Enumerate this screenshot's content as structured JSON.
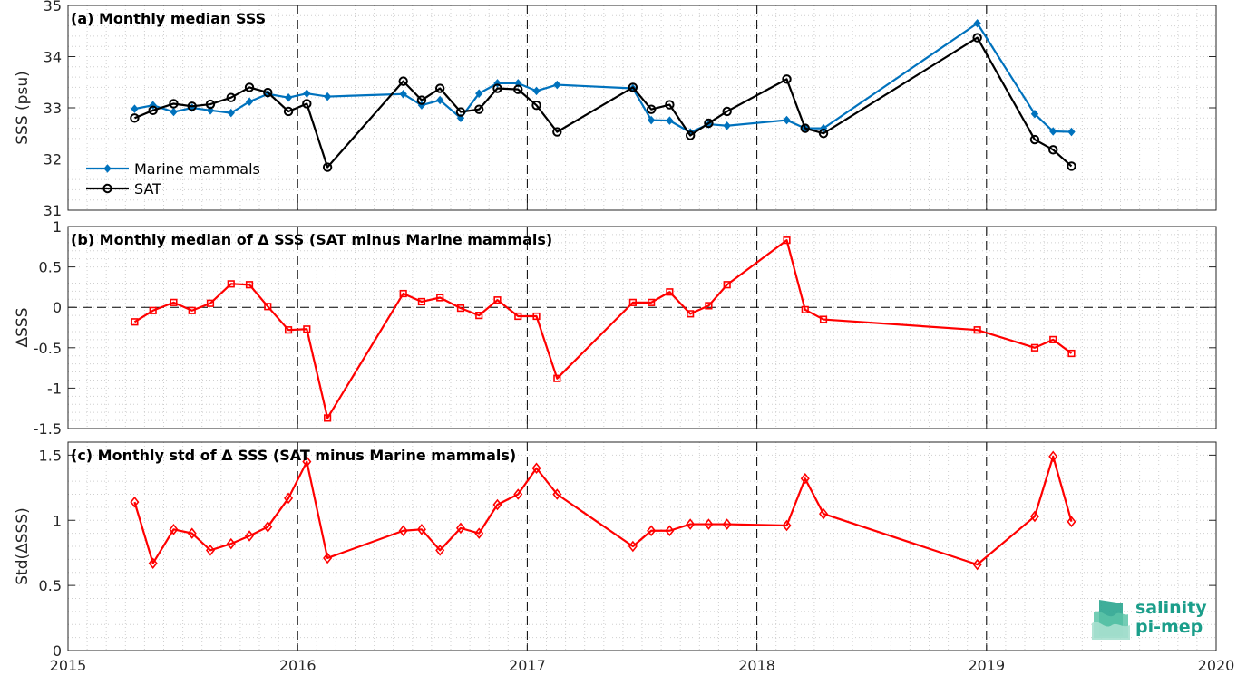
{
  "chart_data": [
    {
      "panel": "a",
      "type": "line",
      "title": "(a) Monthly median SSS",
      "ylabel": "SSS (psu)",
      "xlim": [
        2015,
        2020
      ],
      "ylim": [
        31,
        35
      ],
      "yticks": [
        31,
        32,
        33,
        34,
        35
      ],
      "yticklabels": [
        "31",
        "32",
        "33",
        "34",
        "35"
      ],
      "grid": "dotted minor",
      "legend": "bottom-left",
      "series": [
        {
          "name": "Marine mammals",
          "color": "#0072bd",
          "marker": "diamond",
          "x": [
            2015.29,
            2015.37,
            2015.46,
            2015.54,
            2015.62,
            2015.71,
            2015.79,
            2015.87,
            2015.96,
            2016.04,
            2016.13,
            2016.46,
            2016.54,
            2016.62,
            2016.71,
            2016.79,
            2016.87,
            2016.96,
            2017.04,
            2017.13,
            2017.46,
            2017.54,
            2017.62,
            2017.71,
            2017.79,
            2017.87,
            2018.13,
            2018.21,
            2018.29,
            2018.96,
            2019.21,
            2019.29,
            2019.37
          ],
          "y": [
            32.98,
            33.05,
            32.92,
            33.0,
            32.95,
            32.9,
            33.12,
            33.27,
            33.2,
            33.28,
            33.22,
            33.27,
            33.05,
            33.15,
            32.8,
            33.28,
            33.48,
            33.48,
            33.33,
            33.45,
            33.38,
            32.76,
            32.75,
            32.52,
            32.68,
            32.65,
            32.76,
            32.6,
            32.6,
            34.65,
            32.88,
            32.54,
            32.53
          ]
        },
        {
          "name": "SAT",
          "color": "#000000",
          "marker": "circle",
          "x": [
            2015.29,
            2015.37,
            2015.46,
            2015.54,
            2015.62,
            2015.71,
            2015.79,
            2015.87,
            2015.96,
            2016.04,
            2016.13,
            2016.46,
            2016.54,
            2016.62,
            2016.71,
            2016.79,
            2016.87,
            2016.96,
            2017.04,
            2017.13,
            2017.46,
            2017.54,
            2017.62,
            2017.71,
            2017.79,
            2017.87,
            2018.13,
            2018.21,
            2018.29,
            2018.96,
            2019.21,
            2019.29,
            2019.37
          ],
          "y": [
            32.8,
            32.95,
            33.08,
            33.03,
            33.07,
            33.2,
            33.4,
            33.3,
            32.93,
            33.08,
            31.84,
            33.52,
            33.15,
            33.38,
            32.92,
            32.97,
            33.38,
            33.36,
            33.05,
            32.53,
            33.4,
            32.97,
            33.06,
            32.46,
            32.7,
            32.93,
            33.56,
            32.6,
            32.5,
            34.37,
            32.38,
            32.18,
            31.86
          ]
        }
      ]
    },
    {
      "panel": "b",
      "type": "line",
      "title": "(b) Monthly median of Δ SSS (SAT minus Marine mammals)",
      "ylabel": "ΔSSS",
      "xlim": [
        2015,
        2020
      ],
      "ylim": [
        -1.5,
        1
      ],
      "yticks": [
        -1.5,
        -1,
        -0.5,
        0,
        0.5,
        1
      ],
      "yticklabels": [
        "-1.5",
        "-1",
        "-0.5",
        "0",
        "0.5",
        "1"
      ],
      "zero_line": true,
      "series": [
        {
          "color": "#ff0000",
          "marker": "square",
          "x": [
            2015.29,
            2015.37,
            2015.46,
            2015.54,
            2015.62,
            2015.71,
            2015.79,
            2015.87,
            2015.96,
            2016.04,
            2016.13,
            2016.46,
            2016.54,
            2016.62,
            2016.71,
            2016.79,
            2016.87,
            2016.96,
            2017.04,
            2017.13,
            2017.46,
            2017.54,
            2017.62,
            2017.71,
            2017.79,
            2017.87,
            2018.13,
            2018.21,
            2018.29,
            2018.96,
            2019.21,
            2019.29,
            2019.37
          ],
          "y": [
            -0.18,
            -0.04,
            0.06,
            -0.04,
            0.05,
            0.29,
            0.28,
            0.01,
            -0.28,
            -0.27,
            -1.37,
            0.17,
            0.07,
            0.12,
            -0.01,
            -0.1,
            0.09,
            -0.11,
            -0.11,
            -0.88,
            0.06,
            0.06,
            0.19,
            -0.08,
            0.02,
            0.28,
            0.83,
            -0.03,
            -0.15,
            -0.28,
            -0.5,
            -0.4,
            -0.57
          ]
        }
      ]
    },
    {
      "panel": "c",
      "type": "line",
      "title": "(c) Monthly std of Δ SSS (SAT minus Marine mammals)",
      "ylabel": "Std(ΔSSS)",
      "xlim": [
        2015,
        2020
      ],
      "ylim": [
        0,
        1.6
      ],
      "yticks": [
        0,
        0.5,
        1,
        1.5
      ],
      "yticklabels": [
        "0",
        "0.5",
        "1",
        "1.5"
      ],
      "xticks": [
        2015,
        2016,
        2017,
        2018,
        2019,
        2020
      ],
      "xticklabels": [
        "2015",
        "2016",
        "2017",
        "2018",
        "2019",
        "2020"
      ],
      "series": [
        {
          "color": "#ff0000",
          "marker": "diamond",
          "x": [
            2015.29,
            2015.37,
            2015.46,
            2015.54,
            2015.62,
            2015.71,
            2015.79,
            2015.87,
            2015.96,
            2016.04,
            2016.13,
            2016.46,
            2016.54,
            2016.62,
            2016.71,
            2016.79,
            2016.87,
            2016.96,
            2017.04,
            2017.13,
            2017.46,
            2017.54,
            2017.62,
            2017.71,
            2017.79,
            2017.87,
            2018.13,
            2018.21,
            2018.29,
            2018.96,
            2019.21,
            2019.29,
            2019.37
          ],
          "y": [
            1.14,
            0.67,
            0.93,
            0.9,
            0.77,
            0.82,
            0.88,
            0.95,
            1.17,
            1.45,
            0.71,
            0.92,
            0.93,
            0.77,
            0.94,
            0.9,
            1.12,
            1.2,
            1.4,
            1.2,
            0.8,
            0.92,
            0.92,
            0.97,
            0.97,
            0.97,
            0.96,
            1.32,
            1.05,
            0.66,
            1.03,
            1.49,
            0.99
          ]
        }
      ]
    }
  ],
  "year_markers": [
    2016,
    2017,
    2018,
    2019
  ],
  "logo": {
    "line1": "salinity",
    "line2": "pi-mep",
    "color": "#1b9e8a"
  }
}
